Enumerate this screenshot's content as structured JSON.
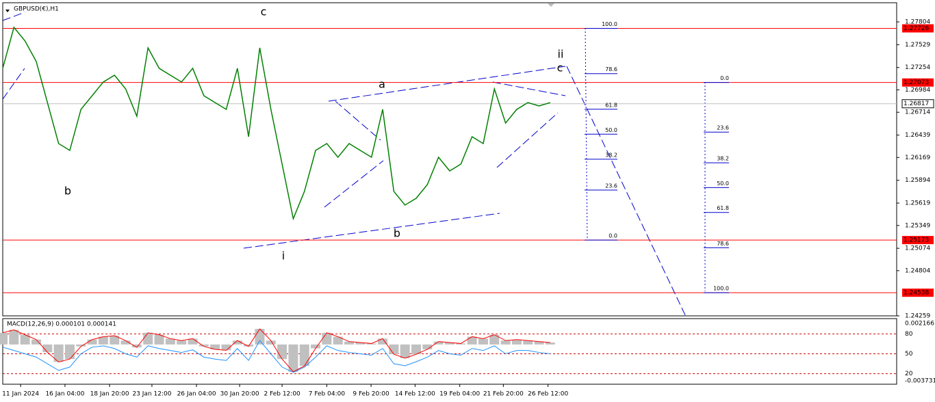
{
  "chart_data": {
    "type": "line",
    "title": "GBPUSD(€),H1",
    "xlim": [
      0,
      80
    ],
    "xticks": [
      {
        "value": 1.6,
        "label": "11 Jan 2024"
      },
      {
        "value": 5.57,
        "label": "16 Jan 04:00"
      },
      {
        "value": 9.56,
        "label": "18 Jan 20:00"
      },
      {
        "value": 13.35,
        "label": "23 Jan 12:00"
      },
      {
        "value": 17.34,
        "label": "26 Jan 04:00"
      },
      {
        "value": 21.2,
        "label": "30 Jan 20:00"
      },
      {
        "value": 25.0,
        "label": "2 Feb 12:00"
      },
      {
        "value": 29.0,
        "label": "7 Feb 04:00"
      },
      {
        "value": 32.96,
        "label": "9 Feb 20:00"
      },
      {
        "value": 36.9,
        "label": "14 Feb 12:00"
      },
      {
        "value": 40.9,
        "label": "19 Feb 04:00"
      },
      {
        "value": 44.8,
        "label": "21 Feb 20:00"
      },
      {
        "value": 48.8,
        "label": "26 Feb 12:00"
      }
    ],
    "ylim": [
      1.24259,
      1.28035
    ],
    "yticks": [
      1.27804,
      1.27529,
      1.27254,
      1.26984,
      1.26714,
      1.26439,
      1.26169,
      1.25894,
      1.25619,
      1.25349,
      1.25074,
      1.24804,
      1.24259
    ],
    "color": "#008000",
    "values": [
      1.27244,
      1.27738,
      1.27573,
      1.27326,
      1.26831,
      1.26337,
      1.26254,
      1.26749,
      1.26914,
      1.27079,
      1.27161,
      1.26996,
      1.26666,
      1.27491,
      1.27244,
      1.27161,
      1.27079,
      1.27244,
      1.26914,
      1.26831,
      1.26749,
      1.27244,
      1.26419,
      1.27491,
      1.26749,
      1.26089,
      1.2543,
      1.2576,
      1.26254,
      1.26337,
      1.26172,
      1.26337,
      1.26254,
      1.26172,
      1.26749,
      1.2576,
      1.25595,
      1.25677,
      1.25842,
      1.26172,
      1.26007,
      1.26089,
      1.26419,
      1.26337,
      1.26996,
      1.26584,
      1.26749,
      1.26831,
      1.2679,
      1.26831
    ],
    "price_lines": [
      {
        "value": 1.27726,
        "color": "#ff0000"
      },
      {
        "value": 1.27073,
        "color": "#ff0000"
      },
      {
        "value": 1.25173,
        "color": "#ff0000"
      },
      {
        "value": 1.24538,
        "color": "#ff0000"
      }
    ],
    "current_price": 1.26817,
    "wave_labels": [
      {
        "text": "c",
        "color": "#ff00ff"
      },
      {
        "text": "b",
        "color": "#ff00ff"
      },
      {
        "text": "i",
        "color": "#ff00ff"
      },
      {
        "text": "ii",
        "color": "#ff00ff"
      },
      {
        "text": "a",
        "color": "#000000"
      },
      {
        "text": "b",
        "color": "#000000"
      },
      {
        "text": "c",
        "color": "#000000"
      }
    ],
    "fib_left": {
      "from": 1.25173,
      "to": 1.27726,
      "levels": [
        {
          "value": 100,
          "label": "100.0"
        },
        {
          "value": 78.6,
          "label": "78.6"
        },
        {
          "value": 61.8,
          "label": "61.8"
        },
        {
          "value": 50,
          "label": "50.0"
        },
        {
          "value": 38.2,
          "label": "38.2"
        },
        {
          "value": 23.6,
          "label": "23.6"
        },
        {
          "value": 0,
          "label": "0.0"
        }
      ]
    },
    "fib_right": {
      "from": 1.27073,
      "to": 1.24538,
      "levels": [
        {
          "value": 0,
          "label": "0.0"
        },
        {
          "value": 23.6,
          "label": "23.6"
        },
        {
          "value": 38.2,
          "label": "38.2"
        },
        {
          "value": 50,
          "label": "50.0"
        },
        {
          "value": 61.8,
          "label": "61.8"
        },
        {
          "value": 78.6,
          "label": "78.6"
        },
        {
          "value": 100,
          "label": "100.0"
        }
      ]
    },
    "macd": {
      "title": "MACD(12,26,9) 0.000101 0.000141",
      "ylim": [
        -0.003731,
        0.002166
      ],
      "yticks": [
        0.002166,
        -0.003731
      ],
      "y2lim": [
        0,
        100
      ],
      "levels": [
        80,
        50,
        20
      ],
      "histogram": [
        0.0012,
        0.0015,
        0.001,
        0.0005,
        -0.0008,
        -0.0018,
        -0.0015,
        -0.0002,
        0.0005,
        0.0008,
        0.0009,
        0.0004,
        -0.0003,
        0.0012,
        0.001,
        0.0006,
        0.0004,
        0.0006,
        -0.0002,
        -0.0005,
        -0.0006,
        0.0004,
        -0.0002,
        0.0016,
        0.0004,
        -0.0015,
        -0.0028,
        -0.0022,
        -0.0004,
        0.0012,
        0.0008,
        0.0003,
        0.0002,
        0.0001,
        0.0006,
        -0.001,
        -0.0014,
        -0.001,
        -0.0005,
        0.0003,
        0.0002,
        0.0001,
        0.0008,
        0.0006,
        0.001,
        0.0004,
        0.0005,
        0.0004,
        0.0003,
        0.0002
      ],
      "oscillator": [
        60,
        55,
        50,
        45,
        35,
        25,
        30,
        50,
        60,
        62,
        58,
        50,
        45,
        62,
        58,
        55,
        52,
        56,
        45,
        42,
        40,
        58,
        40,
        70,
        50,
        30,
        22,
        30,
        45,
        62,
        55,
        52,
        50,
        48,
        58,
        35,
        32,
        38,
        45,
        55,
        50,
        48,
        58,
        55,
        62,
        50,
        55,
        55,
        52,
        50
      ]
    }
  }
}
